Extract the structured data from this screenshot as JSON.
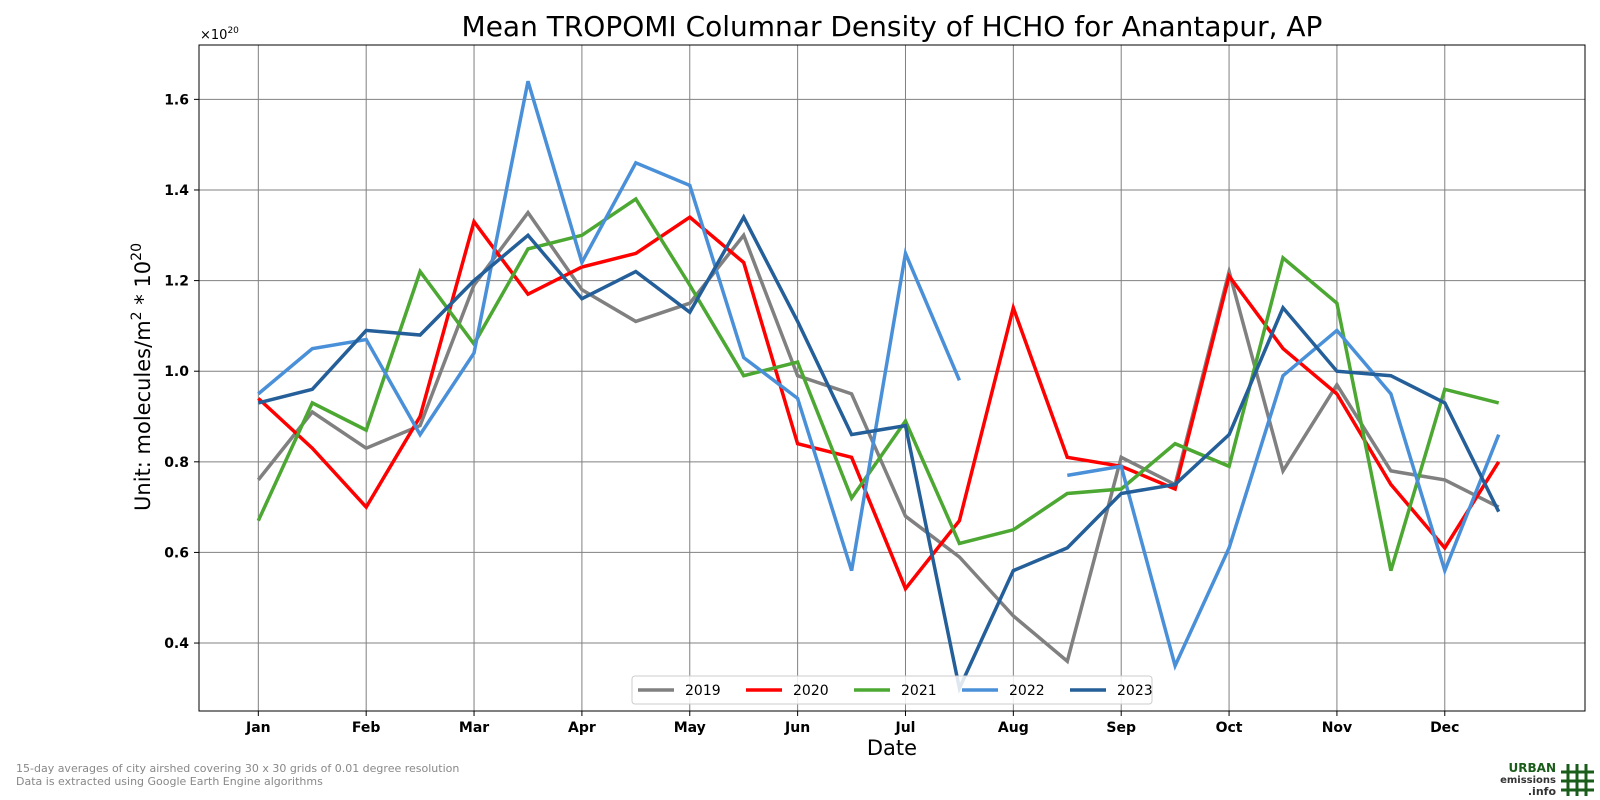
{
  "chart_data": {
    "type": "line",
    "title": "Mean TROPOMI Columnar Density of HCHO for Anantapur, AP",
    "xlabel": "Date",
    "ylabel_text": "Unit: molecules/m",
    "ylabel_sup1": "2",
    "ylabel_mid": " * 10",
    "ylabel_sup2": "20",
    "scale_base": "×10",
    "scale_exp": "20",
    "x_ticks": [
      "Jan",
      "Feb",
      "Mar",
      "Apr",
      "May",
      "Jun",
      "Jul",
      "Aug",
      "Sep",
      "Oct",
      "Nov",
      "Dec"
    ],
    "x_range": [
      -0.55,
      12.3
    ],
    "ylim": [
      0.25,
      1.72
    ],
    "y_ticks": [
      "0.4",
      "0.6",
      "0.8",
      "1.0",
      "1.2",
      "1.4",
      "1.6"
    ],
    "grid": true,
    "legend_position": "bottom-center",
    "x": [
      0,
      0.5,
      1,
      1.5,
      2,
      2.5,
      3,
      3.5,
      4,
      4.5,
      5,
      5.5,
      6,
      6.5,
      7,
      7.5,
      8,
      8.5,
      9,
      9.5,
      10,
      10.5,
      11,
      11.5
    ],
    "series": [
      {
        "name": "2019",
        "color": "#808080",
        "values": [
          0.76,
          0.91,
          0.83,
          0.88,
          1.19,
          1.35,
          1.18,
          1.11,
          1.15,
          1.3,
          0.99,
          0.95,
          0.68,
          0.59,
          0.46,
          0.36,
          0.81,
          0.75,
          1.22,
          0.78,
          0.97,
          0.78,
          0.76,
          0.7
        ]
      },
      {
        "name": "2020",
        "color": "#ff0000",
        "values": [
          0.94,
          0.83,
          0.7,
          0.9,
          1.33,
          1.17,
          1.23,
          1.26,
          1.34,
          1.24,
          0.84,
          0.81,
          0.52,
          0.67,
          1.14,
          0.81,
          0.79,
          0.74,
          1.21,
          1.05,
          0.95,
          0.75,
          0.61,
          0.8
        ]
      },
      {
        "name": "2021",
        "color": "#4ca832",
        "values": [
          0.67,
          0.93,
          0.87,
          1.22,
          1.06,
          1.27,
          1.3,
          1.38,
          1.19,
          0.99,
          1.02,
          0.72,
          0.89,
          0.62,
          0.65,
          0.73,
          0.74,
          0.84,
          0.79,
          1.25,
          1.15,
          0.56,
          0.96,
          0.93
        ]
      },
      {
        "name": "2022",
        "color": "#4a90d9",
        "values": [
          0.95,
          1.05,
          1.07,
          0.86,
          1.04,
          1.64,
          1.24,
          1.46,
          1.41,
          1.03,
          0.94,
          0.56,
          1.26,
          0.98,
          null,
          0.77,
          0.79,
          0.35,
          0.61,
          0.99,
          1.09,
          0.95,
          0.56,
          0.86
        ]
      },
      {
        "name": "2023",
        "color": "#245f99",
        "values": [
          0.93,
          0.96,
          1.09,
          1.08,
          1.2,
          1.3,
          1.16,
          1.22,
          1.13,
          1.34,
          1.11,
          0.86,
          0.88,
          0.3,
          0.56,
          0.61,
          0.73,
          0.75,
          0.86,
          1.14,
          1.0,
          0.99,
          0.93,
          0.69
        ]
      }
    ]
  },
  "footnote": {
    "line1": "15-day averages of city airshed covering 30 x 30 grids of 0.01 degree resolution",
    "line2": "Data is extracted using Google Earth Engine algorithms"
  },
  "logo": {
    "line1": "URBAN",
    "line2": "emissions",
    "line3": ".info",
    "color_dark": "#1a5c1a"
  }
}
